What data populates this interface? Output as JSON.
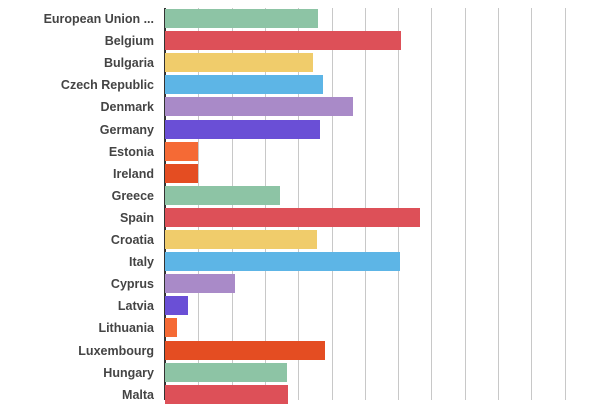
{
  "chart_data": {
    "type": "bar",
    "orientation": "horizontal",
    "title": "",
    "xlabel": "",
    "ylabel": "",
    "grid": true,
    "legend": "none",
    "x_tick_labels_visible": false,
    "xlim": [
      0,
      12.5
    ],
    "gridline_step": 1,
    "categories": [
      "European Union ...",
      "Belgium",
      "Bulgaria",
      "Czech Republic",
      "Denmark",
      "Germany",
      "Estonia",
      "Ireland",
      "Greece",
      "Spain",
      "Croatia",
      "Italy",
      "Cyprus",
      "Latvia",
      "Lithuania",
      "Luxembourg",
      "Hungary",
      "Malta"
    ],
    "values": [
      4.6,
      7.1,
      4.45,
      4.75,
      5.65,
      4.65,
      1.0,
      1.0,
      3.45,
      7.65,
      4.55,
      7.05,
      2.1,
      0.7,
      0.35,
      4.8,
      3.65,
      3.7
    ],
    "colors": [
      "#8dc4a5",
      "#dd5058",
      "#f0cc6b",
      "#5db5e6",
      "#a98ac8",
      "#6a4fd6",
      "#f56a35",
      "#e44d22",
      "#8dc4a5",
      "#dd5058",
      "#f0cc6b",
      "#5db5e6",
      "#a98ac8",
      "#6a4fd6",
      "#f56a35",
      "#e44d22",
      "#8dc4a5",
      "#dd5058"
    ]
  }
}
